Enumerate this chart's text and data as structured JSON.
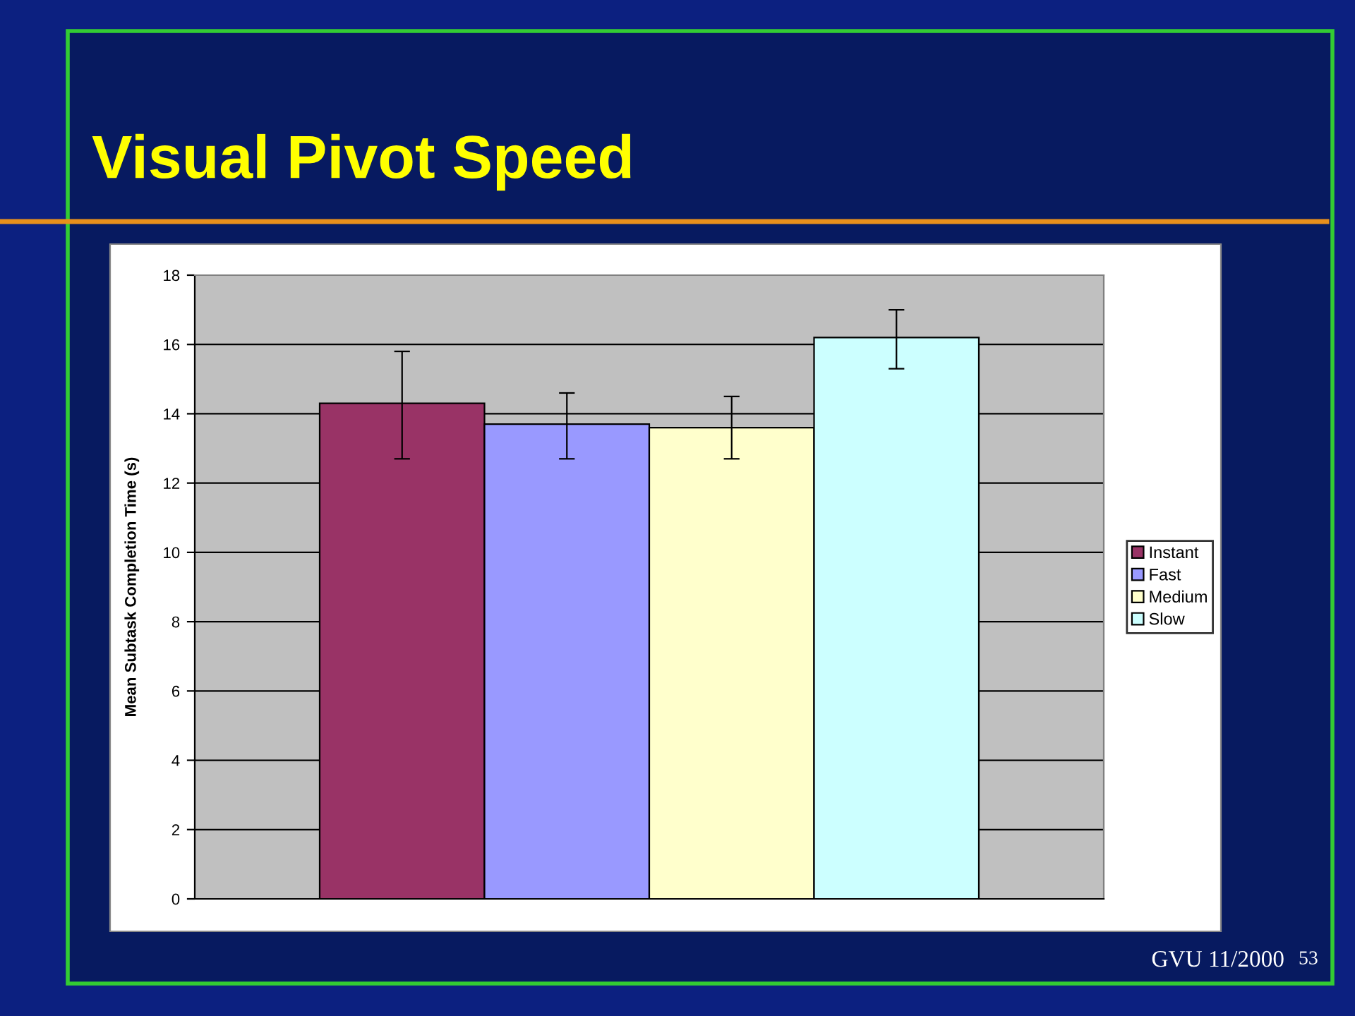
{
  "chart_data": {
    "type": "bar",
    "title": "Visual Pivot Speed",
    "ylabel": "Mean Subtask Completion Time (s)",
    "categories": [
      null
    ],
    "series": [
      {
        "name": "Instant",
        "color": "#993366",
        "values": [
          14.3
        ],
        "errors": [
          [
            12.7,
            15.8
          ]
        ]
      },
      {
        "name": "Fast",
        "color": "#9999ff",
        "values": [
          13.7
        ],
        "errors": [
          [
            12.7,
            14.6
          ]
        ]
      },
      {
        "name": "Medium",
        "color": "#ffffcc",
        "values": [
          13.6
        ],
        "errors": [
          [
            12.7,
            14.5
          ]
        ]
      },
      {
        "name": "Slow",
        "color": "#ccffff",
        "values": [
          16.2
        ],
        "errors": [
          [
            15.3,
            17.0
          ]
        ]
      }
    ],
    "ylim": [
      0,
      18
    ],
    "yticks": [
      0,
      2,
      4,
      6,
      8,
      10,
      12,
      14,
      16,
      18
    ],
    "grid": "y",
    "legend": "right",
    "annotations": [
      "GVU 11/2000",
      "53"
    ]
  }
}
